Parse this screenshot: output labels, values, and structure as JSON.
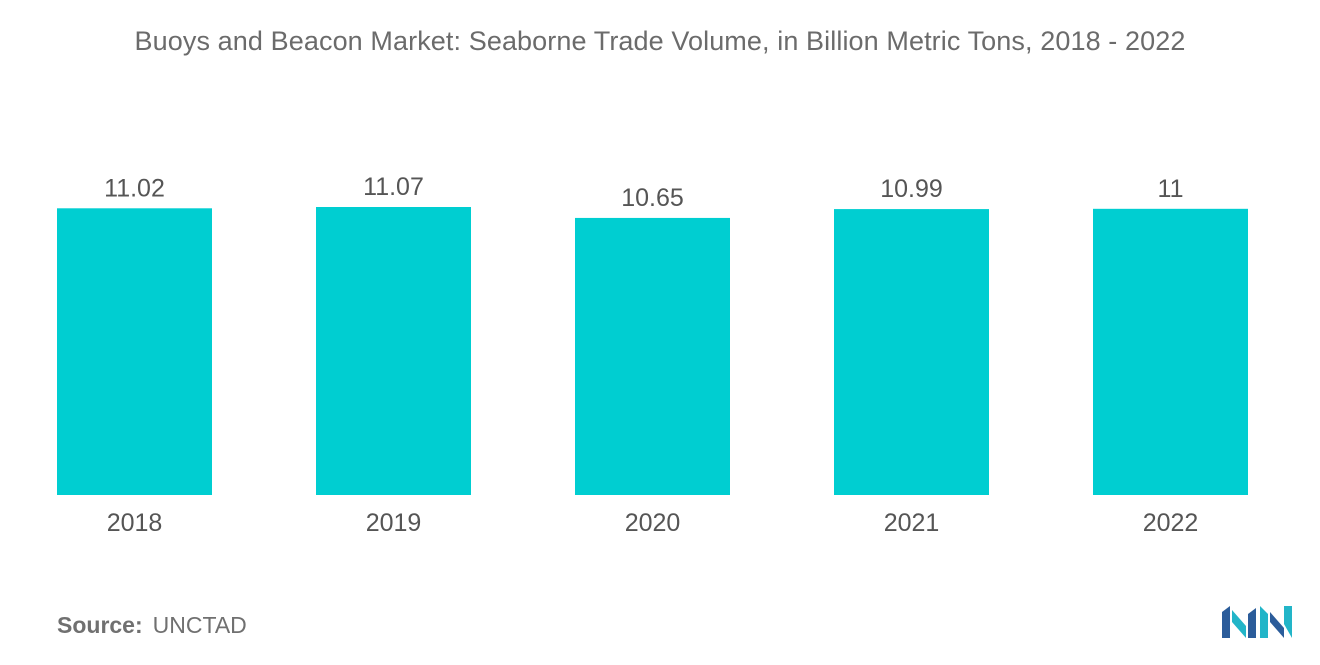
{
  "title": "Buoys and Beacon Market: Seaborne Trade Volume, in Billion Metric Tons, 2018 - 2022",
  "source": {
    "label": "Source:",
    "value": "UNCTAD"
  },
  "colors": {
    "bar": "#00ced1",
    "text": "#555555",
    "logo_dark": "#2b5c9a",
    "logo_light": "#22b5c8"
  },
  "chart_data": {
    "type": "bar",
    "title": "Buoys and Beacon Market: Seaborne Trade Volume, in Billion Metric Tons, 2018 - 2022",
    "xlabel": "",
    "ylabel": "",
    "categories": [
      "2018",
      "2019",
      "2020",
      "2021",
      "2022"
    ],
    "values": [
      11.02,
      11.07,
      10.65,
      10.99,
      11
    ],
    "value_labels": [
      "11.02",
      "11.07",
      "10.65",
      "10.99",
      "11"
    ],
    "ylim": [
      0,
      11.07
    ],
    "grid": false,
    "legend": "none"
  }
}
